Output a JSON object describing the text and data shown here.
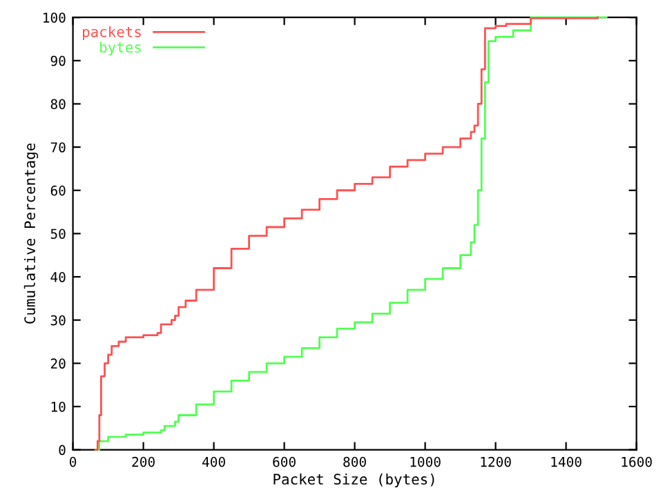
{
  "chart_data": {
    "type": "step",
    "xlabel": "Packet Size (bytes)",
    "ylabel": "Cumulative Percentage",
    "xlim": [
      0,
      1600
    ],
    "xticks": [
      0,
      200,
      400,
      600,
      800,
      1000,
      1200,
      1400,
      1600
    ],
    "ylim": [
      0,
      100
    ],
    "yticks": [
      0,
      10,
      20,
      30,
      40,
      50,
      60,
      70,
      80,
      90,
      100
    ],
    "legend": "top left",
    "grid": false,
    "series": [
      {
        "name": "packets",
        "color": "#ff5050",
        "x": [
          64,
          70,
          75,
          80,
          90,
          100,
          110,
          130,
          150,
          200,
          240,
          250,
          280,
          290,
          300,
          320,
          350,
          400,
          450,
          500,
          550,
          600,
          650,
          700,
          750,
          800,
          850,
          900,
          950,
          1000,
          1050,
          1100,
          1130,
          1140,
          1150,
          1160,
          1170,
          1200,
          1230,
          1300,
          1490
        ],
        "values": [
          0,
          2,
          8,
          17,
          20,
          22,
          24,
          25,
          26,
          26.5,
          27,
          29,
          30,
          31,
          33,
          34.5,
          37,
          42,
          46.5,
          49.5,
          51.5,
          53.5,
          55.5,
          58,
          60,
          61.5,
          63,
          65.5,
          67,
          68.5,
          70,
          72,
          73.5,
          75,
          80,
          88,
          97.5,
          98,
          98.5,
          99.8,
          100
        ]
      },
      {
        "name": "bytes",
        "color": "#50ff50",
        "x": [
          64,
          75,
          100,
          150,
          200,
          250,
          260,
          290,
          300,
          350,
          400,
          450,
          500,
          550,
          600,
          650,
          700,
          750,
          800,
          850,
          900,
          950,
          1000,
          1050,
          1100,
          1130,
          1140,
          1150,
          1160,
          1170,
          1180,
          1200,
          1250,
          1300,
          1515
        ],
        "values": [
          0,
          2,
          3,
          3.5,
          4,
          4.5,
          5.5,
          6.5,
          8,
          10.5,
          13.5,
          16,
          18,
          20,
          21.5,
          23.5,
          26,
          28,
          29.5,
          31.5,
          34,
          37,
          39.5,
          42,
          45,
          48,
          52,
          60,
          72,
          85,
          94.5,
          95.5,
          97,
          100,
          100
        ]
      }
    ]
  }
}
